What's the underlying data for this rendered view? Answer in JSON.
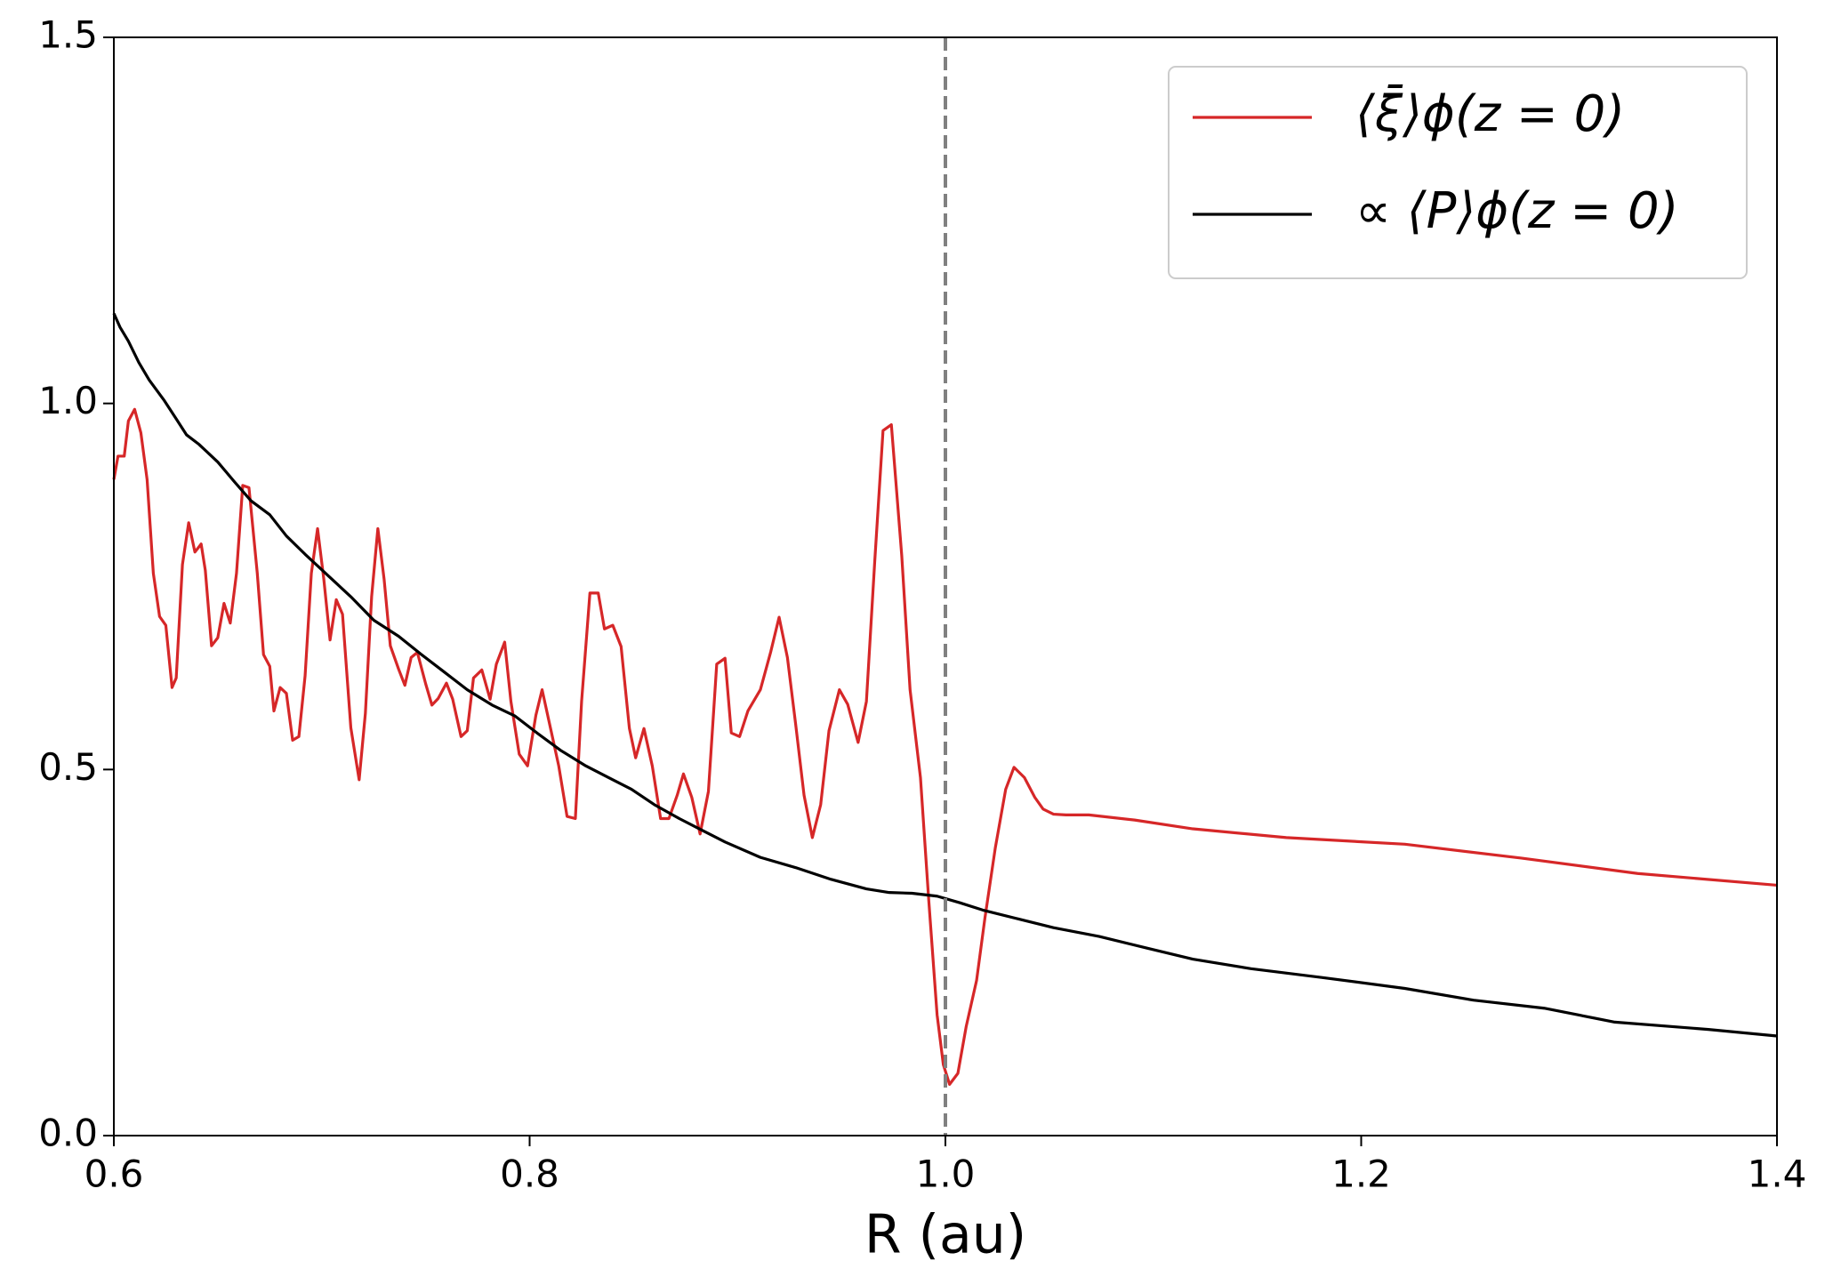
{
  "chart_data": {
    "type": "line",
    "xlabel": "R (au)",
    "xlim": [
      0.6,
      1.4
    ],
    "ylim": [
      0,
      1.5
    ],
    "xticks": [
      0.6,
      0.8,
      {
        "value": 1,
        "label": "1.0"
      },
      1.2,
      1.4
    ],
    "yticks": [
      {
        "value": 0,
        "label": "0.0"
      },
      0.5,
      {
        "value": 1,
        "label": "1.0"
      },
      1.5
    ],
    "vline": {
      "x": 1,
      "color": "#808080",
      "style": "dashed"
    },
    "legend": "upper right",
    "series": [
      {
        "name": "⟨ξ̄⟩ϕ(z = 0)",
        "color": "#d62728",
        "x": [
          0.6,
          0.602,
          0.605,
          0.607,
          0.61,
          0.613,
          0.616,
          0.619,
          0.622,
          0.625,
          0.628,
          0.63,
          0.633,
          0.636,
          0.639,
          0.642,
          0.644,
          0.647,
          0.65,
          0.653,
          0.656,
          0.659,
          0.662,
          0.665,
          0.669,
          0.672,
          0.675,
          0.677,
          0.68,
          0.683,
          0.686,
          0.689,
          0.692,
          0.695,
          0.698,
          0.701,
          0.704,
          0.707,
          0.71,
          0.714,
          0.718,
          0.721,
          0.724,
          0.727,
          0.73,
          0.733,
          0.737,
          0.74,
          0.743,
          0.746,
          0.75,
          0.753,
          0.756,
          0.76,
          0.763,
          0.767,
          0.77,
          0.773,
          0.777,
          0.781,
          0.784,
          0.788,
          0.791,
          0.795,
          0.799,
          0.803,
          0.806,
          0.81,
          0.814,
          0.818,
          0.822,
          0.825,
          0.829,
          0.833,
          0.836,
          0.84,
          0.844,
          0.848,
          0.851,
          0.855,
          0.859,
          0.863,
          0.867,
          0.871,
          0.874,
          0.878,
          0.882,
          0.886,
          0.89,
          0.894,
          0.897,
          0.901,
          0.905,
          0.911,
          0.916,
          0.92,
          0.924,
          0.928,
          0.932,
          0.936,
          0.94,
          0.944,
          0.949,
          0.953,
          0.958,
          0.962,
          0.966,
          0.97,
          0.974,
          0.979,
          0.983,
          0.988,
          0.992,
          0.996,
          0.999,
          1.002,
          1.006,
          1.01,
          1.015,
          1.019,
          1.024,
          1.029,
          1.033,
          1.038,
          1.043,
          1.047,
          1.052,
          1.058,
          1.069,
          1.091,
          1.119,
          1.164,
          1.221,
          1.277,
          1.333,
          1.4
        ],
        "values": [
          0.896,
          0.928,
          0.928,
          0.976,
          0.992,
          0.96,
          0.896,
          0.768,
          0.709,
          0.697,
          0.612,
          0.625,
          0.78,
          0.837,
          0.797,
          0.808,
          0.772,
          0.669,
          0.68,
          0.727,
          0.7,
          0.768,
          0.888,
          0.885,
          0.768,
          0.657,
          0.641,
          0.58,
          0.612,
          0.604,
          0.54,
          0.545,
          0.628,
          0.768,
          0.829,
          0.76,
          0.677,
          0.732,
          0.712,
          0.557,
          0.486,
          0.577,
          0.736,
          0.829,
          0.76,
          0.669,
          0.637,
          0.615,
          0.653,
          0.66,
          0.617,
          0.588,
          0.597,
          0.618,
          0.596,
          0.545,
          0.553,
          0.625,
          0.636,
          0.596,
          0.644,
          0.674,
          0.593,
          0.521,
          0.505,
          0.574,
          0.609,
          0.557,
          0.505,
          0.436,
          0.433,
          0.593,
          0.741,
          0.741,
          0.692,
          0.697,
          0.668,
          0.556,
          0.516,
          0.556,
          0.505,
          0.433,
          0.433,
          0.465,
          0.494,
          0.462,
          0.412,
          0.47,
          0.644,
          0.652,
          0.55,
          0.545,
          0.58,
          0.609,
          0.661,
          0.708,
          0.653,
          0.561,
          0.465,
          0.407,
          0.452,
          0.553,
          0.609,
          0.589,
          0.537,
          0.593,
          0.784,
          0.963,
          0.971,
          0.792,
          0.609,
          0.489,
          0.321,
          0.165,
          0.097,
          0.07,
          0.085,
          0.149,
          0.212,
          0.297,
          0.393,
          0.473,
          0.503,
          0.489,
          0.462,
          0.446,
          0.439,
          0.438,
          0.438,
          0.431,
          0.419,
          0.407,
          0.398,
          0.379,
          0.358,
          0.342
        ]
      },
      {
        "name": "∝ ⟨P⟩ϕ(z = 0)",
        "color": "#000000",
        "x": [
          0.6,
          0.603,
          0.607,
          0.612,
          0.617,
          0.624,
          0.63,
          0.635,
          0.641,
          0.65,
          0.658,
          0.666,
          0.675,
          0.683,
          0.692,
          0.703,
          0.714,
          0.725,
          0.737,
          0.748,
          0.759,
          0.77,
          0.782,
          0.793,
          0.804,
          0.815,
          0.827,
          0.838,
          0.849,
          0.86,
          0.872,
          0.883,
          0.894,
          0.911,
          0.928,
          0.945,
          0.962,
          0.973,
          0.984,
          0.996,
          1.007,
          1.018,
          1.035,
          1.052,
          1.074,
          1.097,
          1.119,
          1.147,
          1.181,
          1.221,
          1.254,
          1.288,
          1.322,
          1.367,
          1.4
        ],
        "values": [
          1.123,
          1.104,
          1.085,
          1.056,
          1.032,
          1.005,
          0.979,
          0.957,
          0.944,
          0.92,
          0.893,
          0.867,
          0.848,
          0.819,
          0.794,
          0.765,
          0.736,
          0.704,
          0.682,
          0.657,
          0.633,
          0.609,
          0.588,
          0.573,
          0.549,
          0.526,
          0.505,
          0.489,
          0.473,
          0.452,
          0.433,
          0.417,
          0.401,
          0.38,
          0.366,
          0.35,
          0.337,
          0.332,
          0.331,
          0.327,
          0.318,
          0.308,
          0.296,
          0.284,
          0.272,
          0.256,
          0.241,
          0.228,
          0.216,
          0.201,
          0.185,
          0.174,
          0.155,
          0.145,
          0.136
        ]
      }
    ]
  }
}
